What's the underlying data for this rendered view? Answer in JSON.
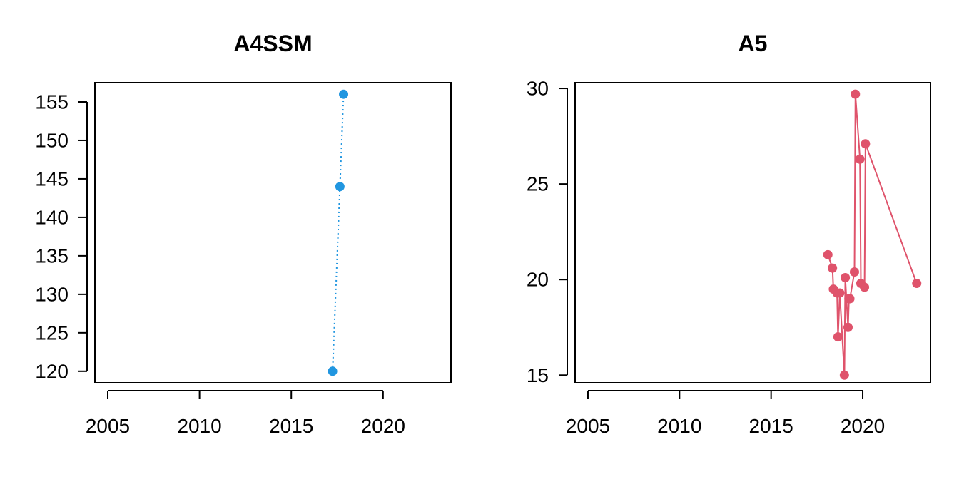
{
  "chart_data": [
    {
      "type": "line",
      "title": "A4SSM",
      "xlabel": "",
      "ylabel": "",
      "xlim": [
        2004.3,
        2023.7
      ],
      "ylim": [
        118.5,
        157.5
      ],
      "x_ticks": [
        2005,
        2010,
        2015,
        2020
      ],
      "y_ticks": [
        120,
        125,
        130,
        135,
        140,
        145,
        150,
        155
      ],
      "color": "#2196E0",
      "line_style": "dotted",
      "series": [
        {
          "name": "A4SSM",
          "x": [
            2017.25,
            2017.65,
            2017.85
          ],
          "y": [
            120,
            144,
            156
          ]
        }
      ]
    },
    {
      "type": "line",
      "title": "A5",
      "xlabel": "",
      "ylabel": "",
      "xlim": [
        2004.3,
        2023.7
      ],
      "ylim": [
        14.6,
        30.3
      ],
      "x_ticks": [
        2005,
        2010,
        2015,
        2020
      ],
      "y_ticks": [
        15,
        20,
        25,
        30
      ],
      "color": "#DF536B",
      "line_style": "solid",
      "series": [
        {
          "name": "A5",
          "x": [
            2018.1,
            2018.35,
            2018.4,
            2018.6,
            2018.65,
            2018.75,
            2019.0,
            2019.05,
            2019.2,
            2019.25,
            2019.3,
            2019.55,
            2019.6,
            2019.85,
            2019.9,
            2020.1,
            2020.15,
            2022.95
          ],
          "y": [
            21.3,
            20.6,
            19.5,
            19.3,
            17.0,
            19.3,
            15.0,
            20.1,
            17.5,
            19.0,
            19.0,
            20.4,
            29.7,
            26.3,
            19.8,
            19.6,
            27.1,
            19.8
          ]
        }
      ]
    }
  ]
}
